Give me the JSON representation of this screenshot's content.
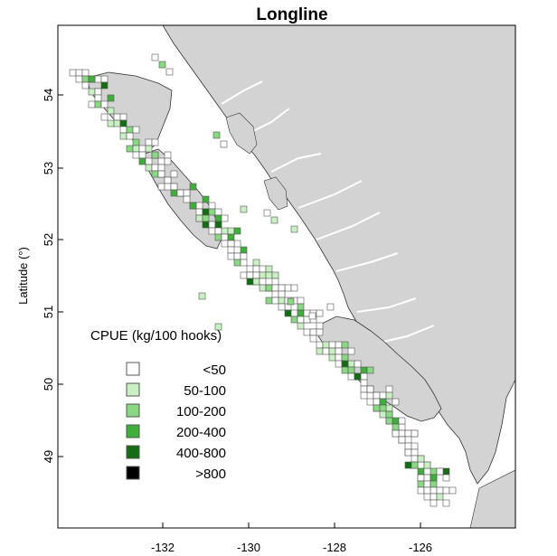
{
  "title": "Longline",
  "ylabel": "Latitude (°)",
  "xticks": [
    "-132",
    "-130",
    "-128",
    "-126"
  ],
  "yticks": [
    "54",
    "53",
    "52",
    "51",
    "50",
    "49"
  ],
  "legend": {
    "title": "CPUE (kg/100 hooks)",
    "items": [
      {
        "label": "<50",
        "color": "#ffffff"
      },
      {
        "label": "50-100",
        "color": "#c9f0c3"
      },
      {
        "label": "100-200",
        "color": "#8ad883"
      },
      {
        "label": "200-400",
        "color": "#3fae3a"
      },
      {
        "label": "400-800",
        "color": "#146d14"
      },
      {
        "label": ">800",
        "color": "#000000"
      }
    ]
  },
  "colors": {
    "land": "#d3d3d3",
    "sea": "#ffffff",
    "coast": "#333333",
    "cell_border": "#555555"
  }
}
